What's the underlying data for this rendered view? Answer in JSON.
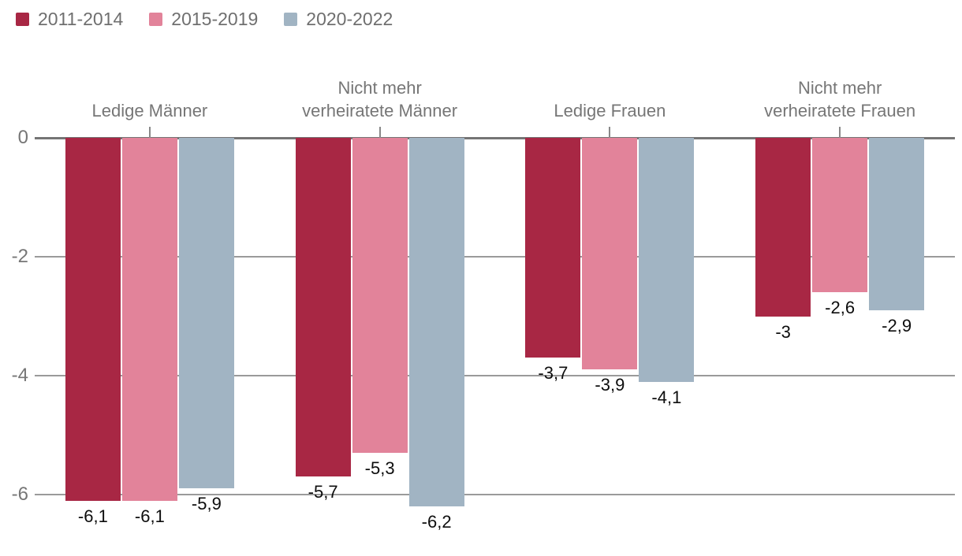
{
  "chart_data": {
    "type": "bar",
    "title": "",
    "orientation": "vertical-negative",
    "categories": [
      "Ledige Männer",
      "Nicht mehr\nverheiratete Männer",
      "Ledige Frauen",
      "Nicht mehr\nverheiratete Frauen"
    ],
    "series": [
      {
        "name": "2011-2014",
        "color": "#a82744",
        "values": [
          -6.1,
          -5.7,
          -3.7,
          -3.0
        ]
      },
      {
        "name": "2015-2019",
        "color": "#e2839a",
        "values": [
          -6.1,
          -5.3,
          -3.9,
          -2.6
        ]
      },
      {
        "name": "2020-2022",
        "color": "#a1b4c3",
        "values": [
          -5.9,
          -6.2,
          -4.1,
          -2.9
        ]
      }
    ],
    "value_labels": [
      [
        "-6,1",
        "-5,7",
        "-3,7",
        "-3"
      ],
      [
        "-6,1",
        "-5,3",
        "-3,9",
        "-2,6"
      ],
      [
        "-5,9",
        "-6,2",
        "-4,1",
        "-2,9"
      ]
    ],
    "y_ticks": [
      0,
      -2,
      -4,
      -6
    ],
    "y_tick_labels": [
      "0",
      "-2",
      "-4",
      "-6"
    ],
    "ylim": [
      -6.5,
      0
    ],
    "grid": true,
    "legend_position": "top-left",
    "decimal_separator": ","
  },
  "style": {
    "background": "#ffffff",
    "gridline_color": "#9a9a9a",
    "zero_line_color": "#757575",
    "axis_text_color": "#767676",
    "category_text_color": "#767676",
    "legend_text_color": "#6f6f6f",
    "value_text_color": "#0d0d0d"
  }
}
